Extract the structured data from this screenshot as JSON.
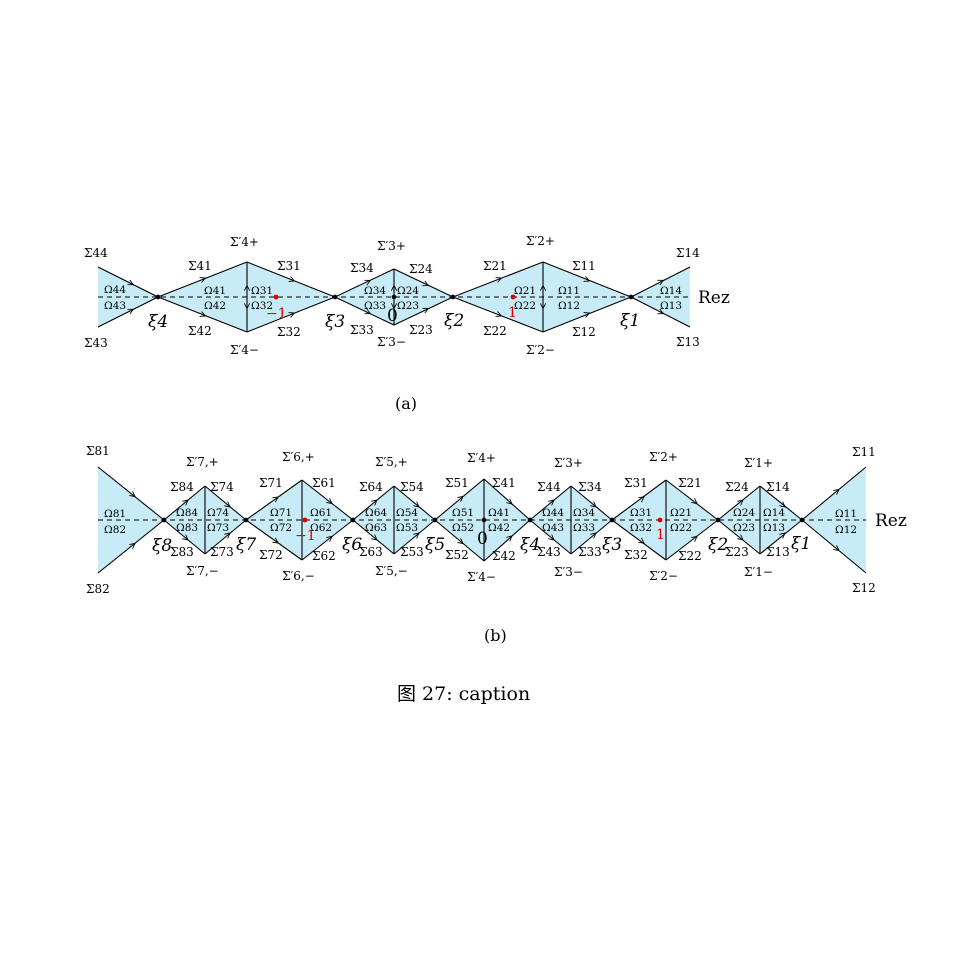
{
  "colors": {
    "fill": "#c8ecf7",
    "line": "#000000",
    "marker": "#e00000"
  },
  "diagram_a": {
    "sublabel": "(a)",
    "axis_label": "Rez",
    "point_zero": "0",
    "point_minus_one": "−1",
    "point_one": "1",
    "xi": [
      "ξ1",
      "ξ2",
      "ξ3",
      "ξ4"
    ],
    "sigma": {
      "s11": "Σ11",
      "s12": "Σ12",
      "s13": "Σ13",
      "s14": "Σ14",
      "s21": "Σ21",
      "s22": "Σ22",
      "s23": "Σ23",
      "s24": "Σ24",
      "s31": "Σ31",
      "s32": "Σ32",
      "s33": "Σ33",
      "s34": "Σ34",
      "s41": "Σ41",
      "s42": "Σ42",
      "s43": "Σ43",
      "s44": "Σ44",
      "p2p": "Σ′2+",
      "p2m": "Σ′2−",
      "p3p": "Σ′3+",
      "p3m": "Σ′3−",
      "p4p": "Σ′4+",
      "p4m": "Σ′4−"
    },
    "omega": {
      "o11": "Ω11",
      "o12": "Ω12",
      "o13": "Ω13",
      "o14": "Ω14",
      "o21": "Ω21",
      "o22": "Ω22",
      "o23": "Ω23",
      "o24": "Ω24",
      "o31": "Ω31",
      "o32": "Ω32",
      "o33": "Ω33",
      "o34": "Ω34",
      "o41": "Ω41",
      "o42": "Ω42",
      "o43": "Ω43",
      "o44": "Ω44"
    }
  },
  "diagram_b": {
    "sublabel": "(b)",
    "axis_label": "Rez",
    "point_zero": "0",
    "point_minus_one": "−1",
    "point_one": "1",
    "xi": [
      "ξ1",
      "ξ2",
      "ξ3",
      "ξ4",
      "ξ5",
      "ξ6",
      "ξ7",
      "ξ8"
    ],
    "sigma": {
      "s11": "Σ11",
      "s12": "Σ12",
      "s13": "Σ13",
      "s14": "Σ14",
      "s21": "Σ21",
      "s22": "Σ22",
      "s23": "Σ23",
      "s24": "Σ24",
      "s31": "Σ31",
      "s32": "Σ32",
      "s33": "Σ33",
      "s34": "Σ34",
      "s41": "Σ41",
      "s42": "Σ42",
      "s43": "Σ43",
      "s44": "Σ44",
      "s51": "Σ51",
      "s52": "Σ52",
      "s53": "Σ53",
      "s54": "Σ54",
      "s61": "Σ61",
      "s62": "Σ62",
      "s63": "Σ63",
      "s64": "Σ64",
      "s71": "Σ71",
      "s72": "Σ72",
      "s73": "Σ73",
      "s74": "Σ74",
      "s81": "Σ81",
      "s82": "Σ82",
      "s83": "Σ83",
      "s84": "Σ84",
      "p1p": "Σ′1+",
      "p1m": "Σ′1−",
      "p2p": "Σ′2+",
      "p2m": "Σ′2−",
      "p3p": "Σ′3+",
      "p3m": "Σ′3−",
      "p4p": "Σ′4+",
      "p4m": "Σ′4−",
      "p5p": "Σ′5,+",
      "p5m": "Σ′5,−",
      "p6p": "Σ′6,+",
      "p6m": "Σ′6,−",
      "p7p": "Σ′7,+",
      "p7m": "Σ′7,−"
    },
    "omega": {
      "o11": "Ω11",
      "o12": "Ω12",
      "o13": "Ω13",
      "o14": "Ω14",
      "o21": "Ω21",
      "o22": "Ω22",
      "o23": "Ω23",
      "o24": "Ω24",
      "o31": "Ω31",
      "o32": "Ω32",
      "o33": "Ω33",
      "o34": "Ω34",
      "o41": "Ω41",
      "o42": "Ω42",
      "o43": "Ω43",
      "o44": "Ω44",
      "o51": "Ω51",
      "o52": "Ω52",
      "o53": "Ω53",
      "o54": "Ω54",
      "o61": "Ω61",
      "o62": "Ω62",
      "o63": "Ω63",
      "o64": "Ω64",
      "o71": "Ω71",
      "o72": "Ω72",
      "o73": "Ω73",
      "o74": "Ω74",
      "o81": "Ω81",
      "o82": "Ω82",
      "o83": "Ω83",
      "o84": "Ω84"
    }
  },
  "caption": "图 27: caption"
}
